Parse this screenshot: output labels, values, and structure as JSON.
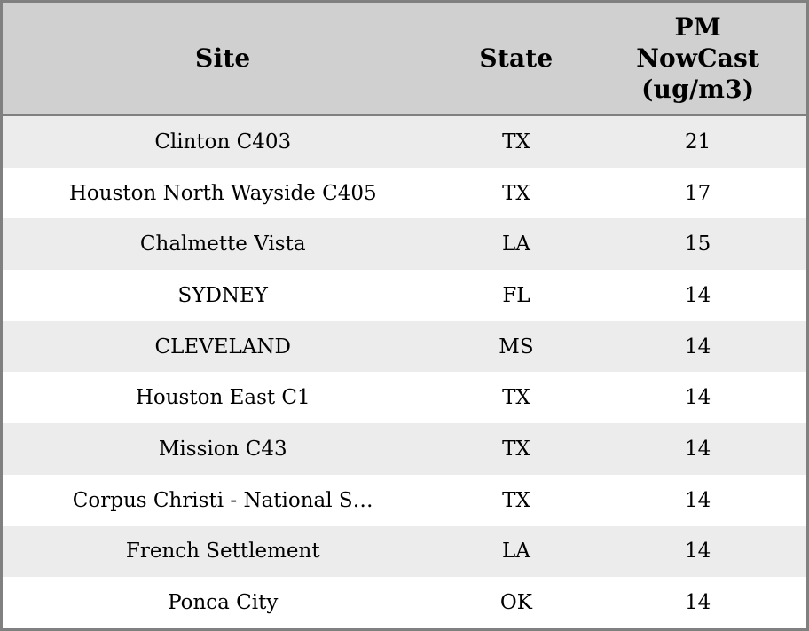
{
  "chart_data": {
    "type": "table",
    "title": "",
    "columns": [
      {
        "label": "Site"
      },
      {
        "label": "State"
      },
      {
        "label": "PM NowCast (ug/m3)"
      }
    ],
    "rows": [
      {
        "site": "Clinton C403",
        "state": "TX",
        "pm": "21"
      },
      {
        "site": "Houston North Wayside C405",
        "state": "TX",
        "pm": "17"
      },
      {
        "site": "Chalmette Vista",
        "state": "LA",
        "pm": "15"
      },
      {
        "site": "SYDNEY",
        "state": "FL",
        "pm": "14"
      },
      {
        "site": "CLEVELAND",
        "state": "MS",
        "pm": "14"
      },
      {
        "site": "Houston East C1",
        "state": "TX",
        "pm": "14"
      },
      {
        "site": "Mission C43",
        "state": "TX",
        "pm": "14"
      },
      {
        "site": "Corpus Christi - National S…",
        "state": "TX",
        "pm": "14"
      },
      {
        "site": "French Settlement",
        "state": "LA",
        "pm": "14"
      },
      {
        "site": "Ponca City",
        "state": "OK",
        "pm": "14"
      }
    ],
    "layout": {
      "header_rows": 1,
      "row_striping": true,
      "value_column_unit": "ug/m3"
    }
  },
  "colors": {
    "header_bg": "#d0d0d0",
    "row_alt_bg": "#ececec",
    "row_bg": "#ffffff",
    "border": "#808080",
    "text": "#000000"
  }
}
